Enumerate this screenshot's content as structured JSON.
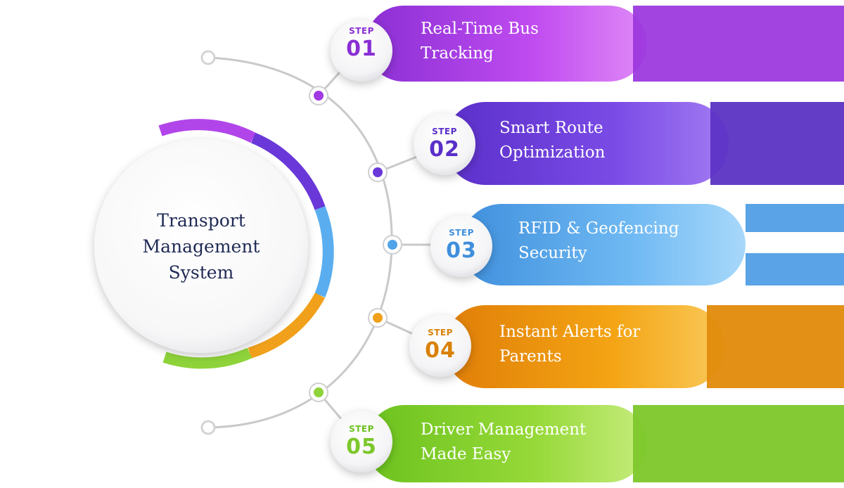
{
  "hub": {
    "title": "Transport\nManagement\nSystem"
  },
  "colors": {
    "purple": "#b245ea",
    "violet": "#6a38d8",
    "blue": "#5aaef0",
    "orange": "#f0a01a",
    "green": "#8ed33a",
    "arc": "#bdbdbd",
    "text_dark": "#1f2a55"
  },
  "steps": [
    {
      "label": "STEP",
      "number": "01",
      "title_line1": "Real-Time Bus",
      "title_line2": "Tracking",
      "color": "#a93be6"
    },
    {
      "label": "STEP",
      "number": "02",
      "title_line1": "Smart Route",
      "title_line2": "Optimization",
      "color": "#6a38d8"
    },
    {
      "label": "STEP",
      "number": "03",
      "title_line1": "RFID & Geofencing",
      "title_line2": "Security",
      "color": "#4fa3e8"
    },
    {
      "label": "STEP",
      "number": "04",
      "title_line1": "Instant Alerts for",
      "title_line2": "Parents",
      "color": "#e79310"
    },
    {
      "label": "STEP",
      "number": "05",
      "title_line1": "Driver Management",
      "title_line2": "Made Easy",
      "color": "#8ed33a"
    }
  ]
}
